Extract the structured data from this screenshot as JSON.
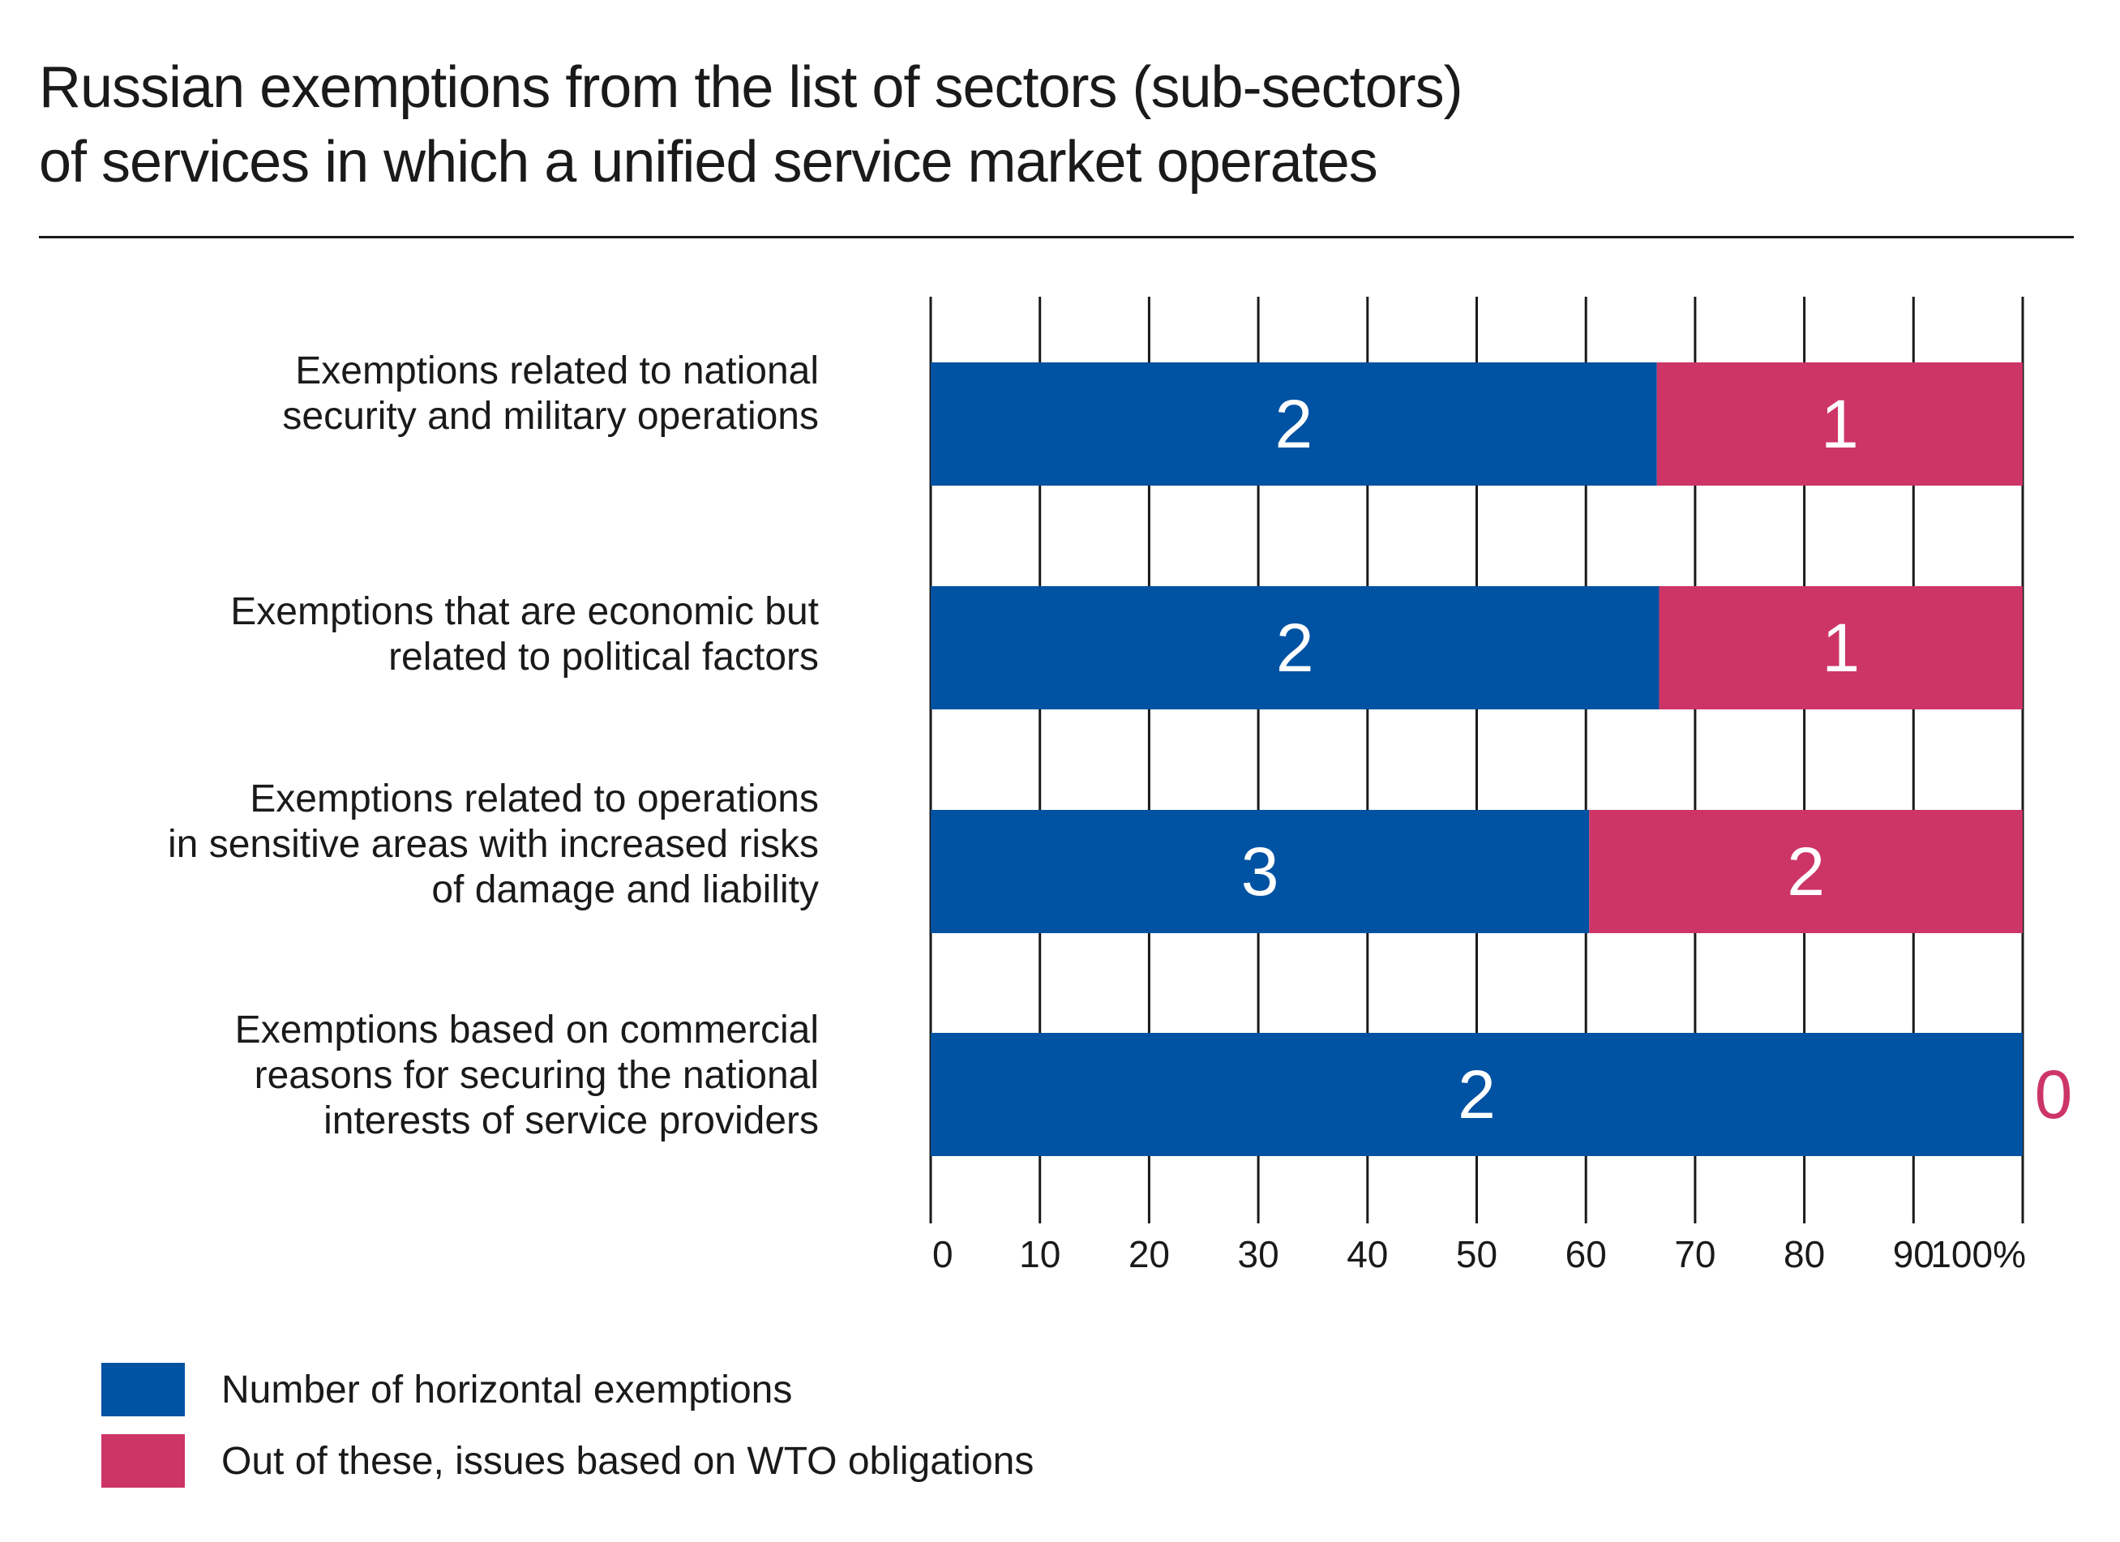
{
  "title_lines": [
    "Russian exemptions from the list of sectors (sub-sectors)",
    "of services in which a unified service market operates"
  ],
  "colors": {
    "horizontal": "#0052a3",
    "wto": "#cd3566"
  },
  "legend": [
    {
      "label": "Number of horizontal exemptions",
      "color": "#0052a3"
    },
    {
      "label": "Out of these, issues based on WTO obligations",
      "color": "#cd3566"
    }
  ],
  "chart_data": {
    "type": "bar",
    "orientation": "horizontal",
    "stacked": true,
    "categories": [
      [
        "Exemptions related to national",
        "security and military operations"
      ],
      [
        "Exemptions that are economic but",
        "related to political factors"
      ],
      [
        "Exemptions related to operations",
        "in sensitive areas with increased risks",
        "of damage and liability"
      ],
      [
        "Exemptions based on commercial",
        "reasons for securing the national",
        "interests of service providers"
      ]
    ],
    "series": [
      {
        "name": "Number of horizontal exemptions",
        "values": [
          66.5,
          66.7,
          60.3,
          100
        ],
        "labels": [
          "2",
          "2",
          "3",
          "2"
        ]
      },
      {
        "name": "Out of these, issues based on WTO obligations",
        "values": [
          33.5,
          33.3,
          39.7,
          0
        ],
        "labels": [
          "1",
          "1",
          "2",
          "0"
        ]
      }
    ],
    "xlim": [
      0,
      100
    ],
    "xticks": [
      "0",
      "10",
      "20",
      "30",
      "40",
      "50",
      "60",
      "70",
      "80",
      "90",
      "100%"
    ],
    "grid": "vertical",
    "legend_position": "bottom-left"
  }
}
